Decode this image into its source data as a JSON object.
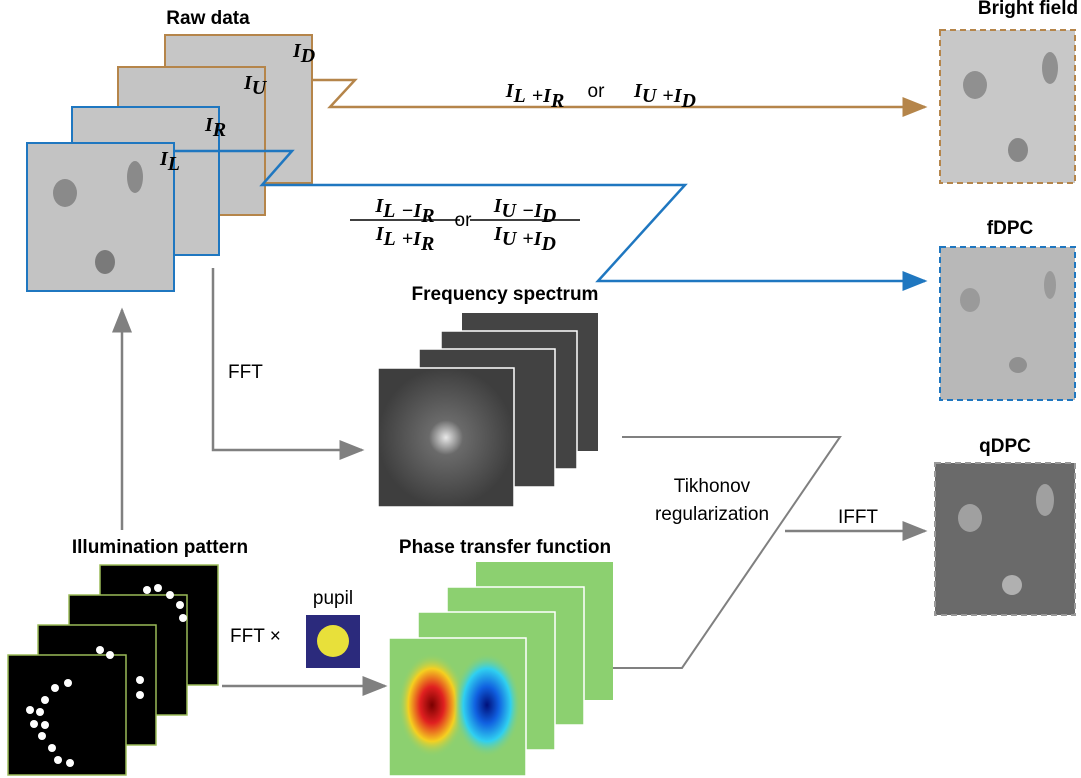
{
  "raw_data": {
    "title": "Raw data",
    "stack_labels": [
      {
        "base": "I",
        "sub": "D"
      },
      {
        "base": "I",
        "sub": "U"
      },
      {
        "base": "I",
        "sub": "R"
      },
      {
        "base": "I",
        "sub": "L"
      }
    ]
  },
  "sum_formula": {
    "left": {
      "a": {
        "base": "I",
        "sub": "L"
      },
      "op": "+",
      "b": {
        "base": "I",
        "sub": "R"
      }
    },
    "or": "or",
    "right": {
      "a": {
        "base": "I",
        "sub": "U"
      },
      "op": "+",
      "b": {
        "base": "I",
        "sub": "D"
      }
    }
  },
  "ratio_formula": {
    "left": {
      "numerator": {
        "a": {
          "base": "I",
          "sub": "L"
        },
        "op": "−",
        "b": {
          "base": "I",
          "sub": "R"
        }
      },
      "denominator": {
        "a": {
          "base": "I",
          "sub": "L"
        },
        "op": "+",
        "b": {
          "base": "I",
          "sub": "R"
        }
      }
    },
    "or": "or",
    "right": {
      "numerator": {
        "a": {
          "base": "I",
          "sub": "U"
        },
        "op": "−",
        "b": {
          "base": "I",
          "sub": "D"
        }
      },
      "denominator": {
        "a": {
          "base": "I",
          "sub": "U"
        },
        "op": "+",
        "b": {
          "base": "I",
          "sub": "D"
        }
      }
    }
  },
  "outputs": [
    {
      "title": "Bright field"
    },
    {
      "title": "fDPC"
    },
    {
      "title": "qDPC"
    }
  ],
  "frequency_spectrum": {
    "title": "Frequency spectrum",
    "fft_label": "FFT"
  },
  "illumination": {
    "title": "Illumination pattern",
    "fft_label": "FFT ×",
    "pupil_label": "pupil"
  },
  "phase_transfer": {
    "title": "Phase transfer function"
  },
  "regularization": {
    "lines": [
      "Tikhonov",
      "regularization"
    ],
    "ifft_label": "IFFT"
  }
}
